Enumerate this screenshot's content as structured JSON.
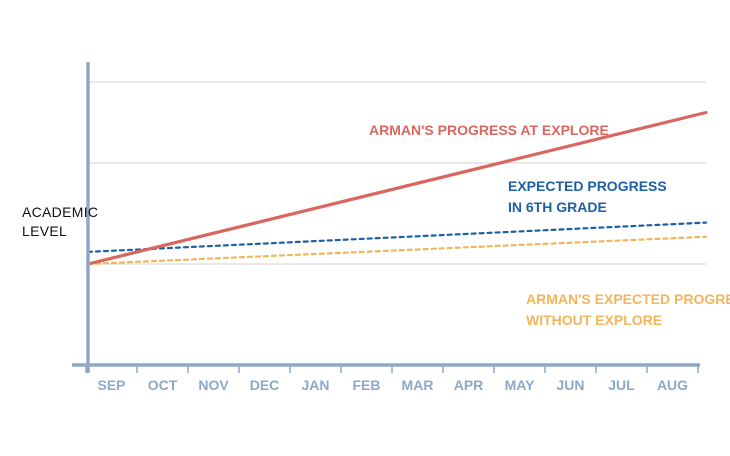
{
  "chart_data": {
    "type": "line",
    "title": "",
    "xlabel": "",
    "ylabel": [
      "ACADEMIC",
      "LEVEL"
    ],
    "categories": [
      "SEP",
      "OCT",
      "NOV",
      "DEC",
      "JAN",
      "FEB",
      "MAR",
      "APR",
      "MAY",
      "JUN",
      "JUL",
      "AUG"
    ],
    "y_axis": {
      "ticks_labeled": false,
      "gridlines": 3
    },
    "series": [
      {
        "name": "ARMAN'S PROGRESS AT EXPLORE",
        "style": "solid",
        "color": "#d9675f",
        "start": 0,
        "end": 1.5
      },
      {
        "name_lines": [
          "EXPECTED PROGRESS",
          "IN 6TH GRADE"
        ],
        "style": "dashed",
        "color": "#1f5fa6",
        "start": 0.12,
        "end": 0.41
      },
      {
        "name_lines": [
          "ARMAN'S EXPECTED PROGRESS",
          "WITHOUT EXPLORE"
        ],
        "style": "dashed",
        "color": "#f2b55a",
        "start": 0,
        "end": 0.27
      }
    ],
    "axis_color": "#8fa8c8",
    "grid_color": "#d3d3d3"
  }
}
